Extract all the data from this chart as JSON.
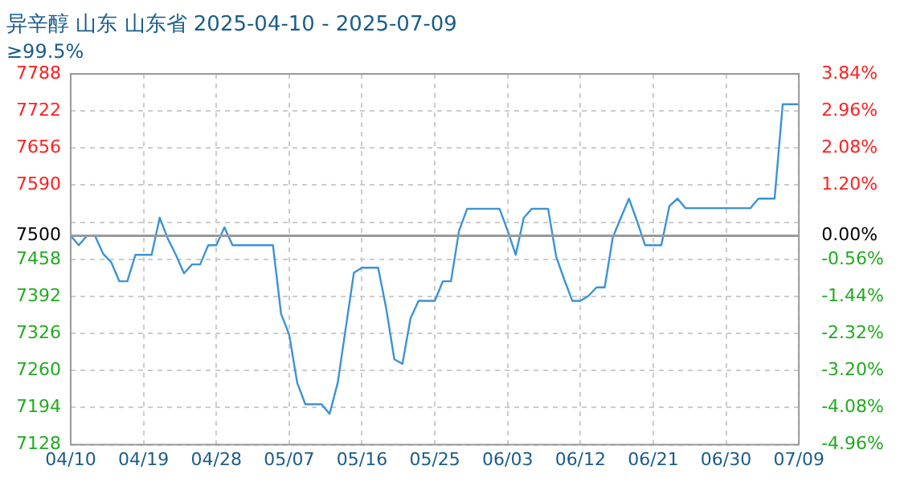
{
  "chart_data": {
    "type": "line",
    "title": "异辛醇 山东 山东省 2025-04-10 - 2025-07-09",
    "subtitle": "≥99.5%",
    "x": [
      "2025-04-10",
      "2025-04-11",
      "2025-04-12",
      "2025-04-13",
      "2025-04-14",
      "2025-04-15",
      "2025-04-16",
      "2025-04-17",
      "2025-04-18",
      "2025-04-19",
      "2025-04-20",
      "2025-04-21",
      "2025-04-22",
      "2025-04-23",
      "2025-04-24",
      "2025-04-25",
      "2025-04-26",
      "2025-04-27",
      "2025-04-28",
      "2025-04-29",
      "2025-04-30",
      "2025-05-05",
      "2025-05-06",
      "2025-05-07",
      "2025-05-08",
      "2025-05-09",
      "2025-05-11",
      "2025-05-12",
      "2025-05-13",
      "2025-05-14",
      "2025-05-15",
      "2025-05-16",
      "2025-05-18",
      "2025-05-19",
      "2025-05-20",
      "2025-05-21",
      "2025-05-22",
      "2025-05-23",
      "2025-05-25",
      "2025-05-26",
      "2025-05-27",
      "2025-05-28",
      "2025-05-29",
      "2025-06-02",
      "2025-06-03",
      "2025-06-04",
      "2025-06-05",
      "2025-06-06",
      "2025-06-08",
      "2025-06-09",
      "2025-06-10",
      "2025-06-11",
      "2025-06-12",
      "2025-06-13",
      "2025-06-14",
      "2025-06-15",
      "2025-06-16",
      "2025-06-17",
      "2025-06-18",
      "2025-06-19",
      "2025-06-20",
      "2025-06-22",
      "2025-06-23",
      "2025-06-24",
      "2025-06-25",
      "2025-07-03",
      "2025-07-04",
      "2025-07-06",
      "2025-07-07",
      "2025-07-09"
    ],
    "series": [
      {
        "color": "#3a93d6",
        "values": [
          7500,
          7483,
          7500,
          7500,
          7468,
          7453,
          7419,
          7419,
          7466,
          7466,
          7466,
          7532,
          7495,
          7466,
          7433,
          7449,
          7449,
          7483,
          7483,
          7515,
          7483,
          7483,
          7361,
          7324,
          7238,
          7200,
          7200,
          7183,
          7238,
          7336,
          7434,
          7443,
          7443,
          7370,
          7280,
          7272,
          7353,
          7384,
          7384,
          7419,
          7419,
          7509,
          7548,
          7548,
          7509,
          7466,
          7532,
          7548,
          7548,
          7463,
          7422,
          7384,
          7384,
          7393,
          7408,
          7408,
          7497,
          7532,
          7566,
          7526,
          7483,
          7483,
          7553,
          7566,
          7549,
          7549,
          7566,
          7566,
          7734,
          7734
        ]
      }
    ],
    "xlim": [
      "2025-04-10",
      "2025-07-09"
    ],
    "xticks": [
      {
        "value": "2025-04-10",
        "label": "04/10"
      },
      {
        "value": "2025-04-19",
        "label": "04/19"
      },
      {
        "value": "2025-04-28",
        "label": "04/28"
      },
      {
        "value": "2025-05-07",
        "label": "05/07"
      },
      {
        "value": "2025-05-16",
        "label": "05/16"
      },
      {
        "value": "2025-05-25",
        "label": "05/25"
      },
      {
        "value": "2025-06-03",
        "label": "06/03"
      },
      {
        "value": "2025-06-12",
        "label": "06/12"
      },
      {
        "value": "2025-06-21",
        "label": "06/21"
      },
      {
        "value": "2025-06-30",
        "label": "06/30"
      },
      {
        "value": "2025-07-09",
        "label": "07/09"
      }
    ],
    "ylim": [
      7128,
      7788
    ],
    "yticks": [
      7128,
      7194,
      7260,
      7326,
      7392,
      7458,
      7500,
      {
        "value": 7524,
        "label": null
      },
      7590,
      7656,
      7722,
      7788
    ],
    "y2lim": [
      -4.96,
      3.84
    ],
    "y2ticks": [
      {
        "value": -4.96,
        "label": "-4.96%"
      },
      {
        "value": -4.08,
        "label": "-4.08%"
      },
      {
        "value": -3.2,
        "label": "-3.20%"
      },
      {
        "value": -2.32,
        "label": "-2.32%"
      },
      {
        "value": -1.44,
        "label": "-1.44%"
      },
      {
        "value": -0.56,
        "label": "-0.56%"
      },
      {
        "value": 0,
        "label": "0.00%"
      },
      {
        "value": 1.2,
        "label": "1.20%"
      },
      {
        "value": 2.08,
        "label": "2.08%"
      },
      {
        "value": 2.96,
        "label": "2.96%"
      },
      {
        "value": 3.84,
        "label": "3.84%"
      }
    ],
    "ref_lines": [
      {
        "axis": "y",
        "value": 7500,
        "color": "#999999"
      }
    ],
    "grid": true,
    "legend": false,
    "marker": "none",
    "line_style": "solid"
  }
}
